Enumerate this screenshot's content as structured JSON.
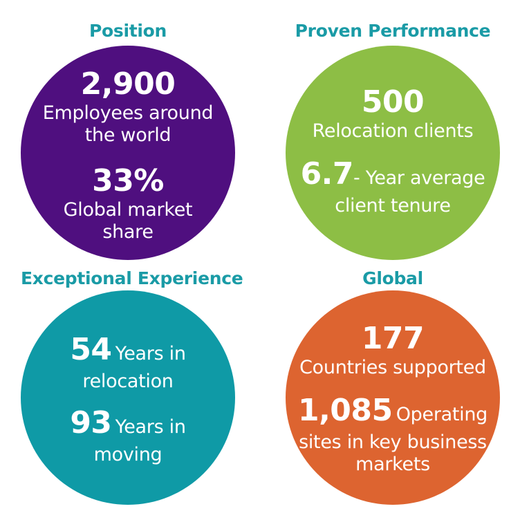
{
  "colors": {
    "heading": "#1a9ba6",
    "position": "#4f0f7f",
    "performance": "#8dbe45",
    "experience": "#0f9aa6",
    "global": "#dd6430"
  },
  "position": {
    "heading": "Position",
    "stat1_value": "2,900",
    "stat1_line1": "Employees around",
    "stat1_line2": "the world",
    "stat2_value": "33%",
    "stat2_line1": "Global market",
    "stat2_line2": "share"
  },
  "performance": {
    "heading": "Proven Performance",
    "stat1_value": "500",
    "stat1_line1": "Relocation clients",
    "stat2_value": "6.7",
    "stat2_suffix": "- Year average",
    "stat2_line2": "client tenure"
  },
  "experience": {
    "heading": "Exceptional Experience",
    "stat1_value": "54",
    "stat1_suffix": "Years in",
    "stat1_line2": "relocation",
    "stat2_value": "93",
    "stat2_suffix": "Years in",
    "stat2_line2": "moving"
  },
  "global": {
    "heading": "Global",
    "stat1_value": "177",
    "stat1_line1": "Countries supported",
    "stat2_value": "1,085",
    "stat2_suffix": "Operating",
    "stat2_line2": "sites in key business",
    "stat2_line3": "markets"
  }
}
